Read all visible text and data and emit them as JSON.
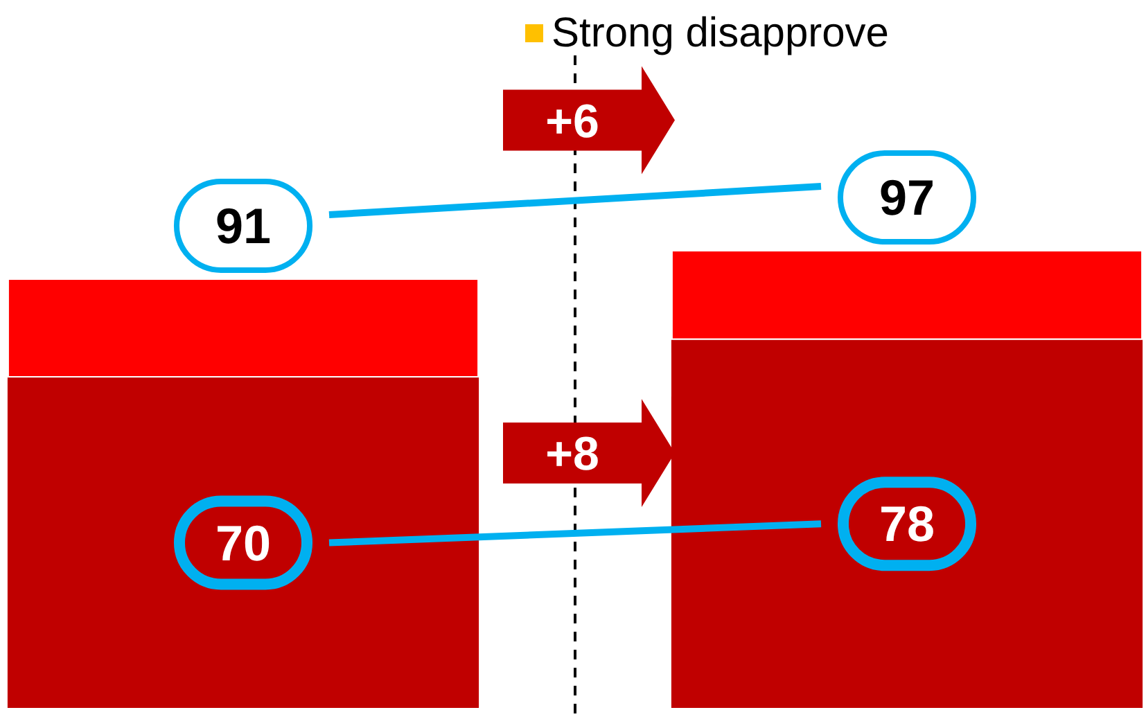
{
  "chart_data": {
    "type": "bar",
    "stacked": true,
    "categories": [
      null,
      null
    ],
    "series": [
      {
        "color": "#c00000",
        "values": [
          70,
          78
        ],
        "value_labels": [
          "70",
          "78"
        ]
      },
      {
        "color": "#ff0000",
        "values": [
          21,
          19
        ]
      },
      {
        "name": "Strong disapprove",
        "color": "#ffc000",
        "values": [
          null,
          null
        ]
      }
    ],
    "totals": [
      "91",
      "97"
    ],
    "ylim": [
      0,
      150
    ],
    "annotations": [
      "+6",
      "+8"
    ],
    "legend": "top"
  }
}
